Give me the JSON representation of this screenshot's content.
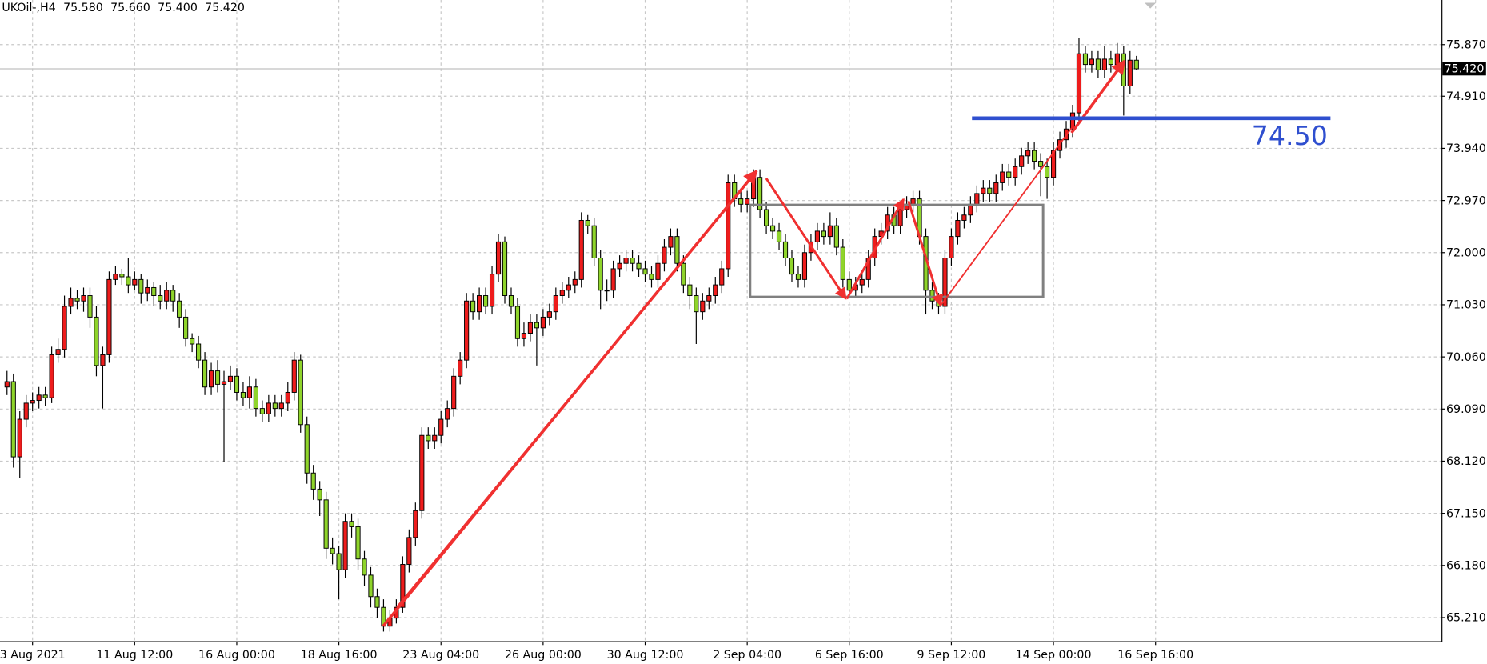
{
  "chart_data": {
    "type": "candlestick",
    "header": {
      "symbol": "UKOil-,H4",
      "values": [
        75.58,
        75.66,
        75.4,
        75.42
      ],
      "value_labels": [
        "75.580",
        "75.660",
        "75.400",
        "75.420"
      ]
    },
    "up_color": "#ee1c1c",
    "down_color": "#8fd42b",
    "grid": true,
    "xlim": [
      -1.1,
      224.8
    ],
    "ylim": [
      64.77,
      76.7
    ],
    "xticks": [
      {
        "value": 4,
        "label": "3 Aug 2021"
      },
      {
        "value": 20,
        "label": "11 Aug 12:00"
      },
      {
        "value": 36,
        "label": "16 Aug 00:00"
      },
      {
        "value": 52,
        "label": "18 Aug 16:00"
      },
      {
        "value": 68,
        "label": "23 Aug 04:00"
      },
      {
        "value": 84,
        "label": "26 Aug 00:00"
      },
      {
        "value": 100,
        "label": "30 Aug 12:00"
      },
      {
        "value": 116,
        "label": "2 Sep 04:00"
      },
      {
        "value": 132,
        "label": "6 Sep 16:00"
      },
      {
        "value": 148,
        "label": "9 Sep 12:00"
      },
      {
        "value": 164,
        "label": "14 Sep 00:00"
      },
      {
        "value": 180,
        "label": "16 Sep 16:00"
      }
    ],
    "yticks": [
      {
        "value": 65.21,
        "label": "65.210"
      },
      {
        "value": 66.18,
        "label": "66.180"
      },
      {
        "value": 67.15,
        "label": "67.150"
      },
      {
        "value": 68.12,
        "label": "68.120"
      },
      {
        "value": 69.09,
        "label": "69.090"
      },
      {
        "value": 70.06,
        "label": "70.060"
      },
      {
        "value": 71.03,
        "label": "71.030"
      },
      {
        "value": 72.0,
        "label": "72.000"
      },
      {
        "value": 72.97,
        "label": "72.970"
      },
      {
        "value": 73.94,
        "label": "73.940"
      },
      {
        "value": 74.91,
        "label": "74.910"
      },
      {
        "value": 75.87,
        "label": "75.870"
      }
    ],
    "last_price": {
      "value": 75.42,
      "label": "75.420"
    },
    "level": {
      "value": 74.5,
      "label": "74.50",
      "color": "#2f4fcf"
    },
    "open": [
      69.5,
      69.6,
      68.2,
      68.9,
      69.2,
      69.25,
      69.35,
      69.3,
      70.1,
      70.2,
      71.0,
      71.15,
      71.1,
      71.2,
      70.8,
      69.9,
      70.1,
      71.5,
      71.6,
      71.55,
      71.4,
      71.5,
      71.25,
      71.35,
      71.2,
      71.1,
      71.3,
      71.1,
      70.8,
      70.4,
      70.3,
      70.0,
      69.5,
      69.8,
      69.55,
      69.6,
      69.7,
      69.4,
      69.3,
      69.5,
      69.1,
      69.0,
      69.2,
      69.1,
      69.2,
      69.4,
      70.0,
      68.8,
      67.9,
      67.6,
      67.4,
      66.5,
      66.4,
      66.1,
      67.0,
      66.9,
      66.3,
      66.0,
      65.6,
      65.4,
      65.05,
      65.2,
      65.4,
      66.2,
      66.7,
      67.2,
      68.6,
      68.5,
      68.6,
      68.9,
      69.1,
      69.7,
      70.0,
      71.1,
      70.9,
      71.2,
      71.0,
      71.6,
      72.2,
      71.2,
      71.0,
      70.4,
      70.5,
      70.7,
      70.6,
      70.8,
      70.9,
      71.2,
      71.3,
      71.4,
      71.5,
      72.6,
      72.5,
      71.9,
      71.3,
      71.3,
      71.7,
      71.8,
      71.9,
      71.8,
      71.7,
      71.6,
      71.5,
      71.8,
      72.1,
      72.3,
      71.8,
      71.4,
      71.2,
      70.9,
      71.1,
      71.2,
      71.4,
      71.7,
      73.3,
      73.0,
      72.9,
      73.0,
      73.4,
      72.8,
      72.5,
      72.4,
      72.2,
      71.9,
      71.6,
      71.5,
      72.0,
      72.2,
      72.4,
      72.3,
      72.5,
      72.1,
      71.5,
      71.3,
      71.4,
      71.5,
      71.9,
      72.3,
      72.4,
      72.7,
      72.5,
      72.8,
      72.9,
      73.0,
      72.3,
      71.3,
      71.1,
      71.0,
      71.9,
      72.3,
      72.6,
      72.7,
      72.9,
      73.1,
      73.2,
      73.1,
      73.3,
      73.5,
      73.4,
      73.6,
      73.8,
      73.9,
      73.7,
      73.6,
      73.4,
      73.9,
      74.1,
      74.3,
      74.6,
      75.7,
      75.5,
      75.6,
      75.4,
      75.6,
      75.5,
      75.7,
      75.1,
      75.58
    ],
    "high": [
      69.8,
      69.75,
      69.05,
      69.35,
      69.4,
      69.5,
      69.5,
      70.25,
      70.4,
      71.2,
      71.35,
      71.3,
      71.35,
      71.35,
      71.0,
      70.25,
      71.65,
      71.75,
      71.7,
      71.9,
      71.65,
      71.6,
      71.5,
      71.45,
      71.4,
      71.45,
      71.4,
      71.25,
      70.95,
      70.5,
      70.45,
      70.15,
      69.95,
      70.0,
      69.8,
      69.9,
      69.85,
      69.6,
      69.7,
      69.65,
      69.25,
      69.35,
      69.35,
      69.35,
      69.6,
      70.15,
      70.1,
      68.95,
      68.05,
      67.75,
      67.55,
      66.7,
      66.55,
      67.15,
      67.15,
      67.05,
      66.45,
      66.15,
      65.75,
      65.55,
      65.35,
      65.55,
      66.35,
      66.85,
      67.35,
      68.75,
      68.75,
      68.75,
      69.05,
      69.25,
      69.85,
      70.15,
      71.25,
      71.25,
      71.35,
      71.35,
      71.75,
      72.35,
      72.3,
      71.35,
      71.15,
      70.7,
      70.85,
      70.85,
      70.95,
      71.05,
      71.35,
      71.45,
      71.55,
      71.65,
      72.75,
      72.7,
      72.65,
      72.05,
      71.5,
      71.85,
      71.95,
      72.05,
      72.05,
      71.95,
      71.85,
      71.75,
      71.95,
      72.25,
      72.45,
      72.45,
      71.95,
      71.55,
      71.35,
      71.25,
      71.35,
      71.55,
      71.85,
      73.45,
      73.45,
      73.15,
      73.15,
      73.55,
      73.55,
      72.95,
      72.65,
      72.55,
      72.35,
      72.05,
      71.75,
      72.15,
      72.35,
      72.55,
      72.55,
      72.75,
      72.65,
      72.25,
      71.65,
      71.55,
      71.65,
      72.05,
      72.45,
      72.55,
      72.85,
      72.85,
      72.95,
      73.05,
      73.15,
      73.15,
      72.45,
      71.45,
      71.25,
      72.05,
      72.45,
      72.75,
      72.85,
      73.05,
      73.25,
      73.35,
      73.35,
      73.45,
      73.65,
      73.65,
      73.75,
      73.95,
      74.05,
      74.05,
      73.85,
      73.75,
      74.05,
      74.25,
      74.45,
      74.75,
      76.0,
      75.85,
      75.75,
      75.75,
      75.85,
      75.75,
      75.9,
      75.85,
      75.75,
      75.66
    ],
    "low": [
      69.35,
      68.0,
      67.8,
      68.75,
      69.05,
      69.1,
      69.15,
      69.2,
      69.95,
      70.05,
      70.85,
      70.95,
      70.9,
      70.6,
      69.7,
      69.1,
      69.95,
      71.4,
      71.4,
      71.25,
      71.3,
      71.05,
      71.1,
      71.0,
      70.95,
      70.95,
      70.9,
      70.6,
      70.25,
      70.15,
      69.85,
      69.35,
      69.35,
      69.4,
      68.1,
      69.45,
      69.25,
      69.15,
      69.1,
      68.95,
      68.85,
      68.85,
      68.95,
      68.95,
      69.05,
      69.25,
      68.65,
      67.7,
      67.4,
      67.1,
      66.3,
      66.2,
      65.55,
      65.95,
      66.7,
      66.1,
      65.8,
      65.4,
      65.2,
      64.95,
      64.95,
      65.1,
      65.3,
      66.05,
      66.55,
      67.05,
      68.35,
      68.35,
      68.45,
      68.75,
      68.95,
      69.55,
      69.85,
      70.75,
      70.75,
      70.85,
      70.85,
      71.45,
      71.05,
      70.85,
      70.25,
      70.25,
      70.35,
      69.9,
      70.45,
      70.65,
      70.75,
      71.05,
      71.15,
      71.25,
      71.35,
      72.35,
      71.75,
      70.95,
      71.1,
      71.15,
      71.55,
      71.65,
      71.65,
      71.55,
      71.45,
      71.35,
      71.35,
      71.65,
      71.95,
      71.65,
      71.25,
      70.95,
      70.3,
      70.75,
      70.95,
      71.05,
      71.25,
      71.55,
      72.85,
      72.75,
      72.75,
      72.85,
      72.65,
      72.35,
      72.25,
      72.05,
      71.75,
      71.45,
      71.35,
      71.35,
      71.85,
      72.05,
      72.15,
      72.15,
      71.95,
      71.35,
      71.15,
      71.15,
      71.25,
      71.35,
      71.75,
      72.15,
      72.25,
      72.35,
      72.35,
      72.65,
      72.75,
      72.15,
      70.85,
      70.95,
      70.85,
      70.85,
      71.75,
      72.15,
      72.45,
      72.55,
      72.75,
      72.95,
      72.95,
      72.95,
      73.15,
      73.25,
      73.25,
      73.45,
      73.65,
      73.55,
      73.05,
      73.0,
      73.25,
      73.75,
      73.95,
      74.15,
      74.45,
      75.35,
      75.35,
      75.25,
      75.25,
      75.35,
      75.35,
      74.55,
      74.95,
      75.4
    ],
    "close": [
      69.6,
      68.2,
      68.9,
      69.2,
      69.25,
      69.35,
      69.3,
      70.1,
      70.2,
      71.0,
      71.15,
      71.1,
      71.2,
      70.8,
      69.9,
      70.1,
      71.5,
      71.6,
      71.55,
      71.4,
      71.5,
      71.25,
      71.35,
      71.2,
      71.1,
      71.3,
      71.1,
      70.8,
      70.4,
      70.3,
      70.0,
      69.5,
      69.8,
      69.55,
      69.6,
      69.7,
      69.4,
      69.3,
      69.5,
      69.1,
      69.0,
      69.2,
      69.1,
      69.2,
      69.4,
      70.0,
      68.8,
      67.9,
      67.6,
      67.4,
      66.5,
      66.4,
      66.1,
      67.0,
      66.9,
      66.3,
      66.0,
      65.6,
      65.4,
      65.05,
      65.2,
      65.4,
      66.2,
      66.7,
      67.2,
      68.6,
      68.5,
      68.6,
      68.9,
      69.1,
      69.7,
      70.0,
      71.1,
      70.9,
      71.2,
      71.0,
      71.6,
      72.2,
      71.2,
      71.0,
      70.4,
      70.5,
      70.7,
      70.6,
      70.8,
      70.9,
      71.2,
      71.3,
      71.4,
      71.5,
      72.6,
      72.5,
      71.9,
      71.3,
      71.3,
      71.7,
      71.8,
      71.9,
      71.8,
      71.7,
      71.6,
      71.5,
      71.8,
      72.1,
      72.3,
      71.8,
      71.4,
      71.2,
      70.9,
      71.1,
      71.2,
      71.4,
      71.7,
      73.3,
      73.0,
      72.9,
      73.0,
      73.4,
      72.8,
      72.5,
      72.4,
      72.2,
      71.9,
      71.6,
      71.5,
      72.0,
      72.2,
      72.4,
      72.3,
      72.5,
      72.1,
      71.5,
      71.3,
      71.4,
      71.5,
      71.9,
      72.3,
      72.4,
      72.7,
      72.5,
      72.8,
      72.9,
      73.0,
      72.3,
      71.3,
      71.1,
      71.0,
      71.9,
      72.3,
      72.6,
      72.7,
      72.9,
      73.1,
      73.2,
      73.1,
      73.3,
      73.5,
      73.4,
      73.6,
      73.8,
      73.9,
      73.7,
      73.6,
      73.4,
      73.9,
      74.1,
      74.3,
      74.6,
      75.7,
      75.5,
      75.6,
      75.4,
      75.6,
      75.5,
      75.7,
      75.1,
      75.58,
      75.42
    ]
  }
}
